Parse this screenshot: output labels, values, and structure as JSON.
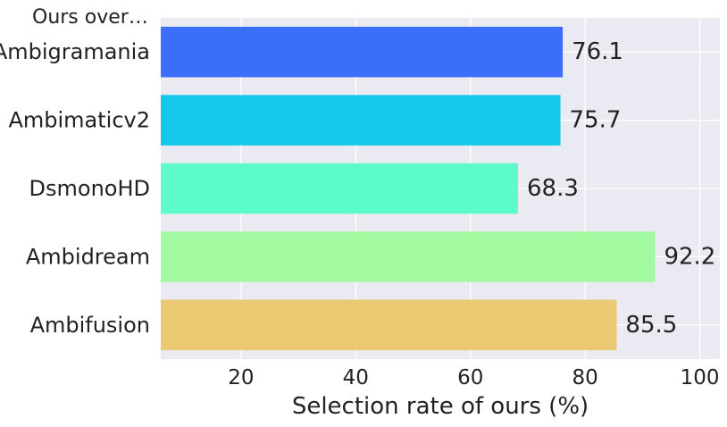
{
  "chart_data": {
    "type": "bar",
    "orientation": "horizontal",
    "corner_label": "Ours over…",
    "title": "",
    "xlabel": "Selection rate of ours (%)",
    "ylabel": "",
    "categories": [
      "Ambigramania",
      "Ambimaticv2",
      "DsmonoHD",
      "Ambidream",
      "Ambifusion"
    ],
    "values": [
      76.1,
      75.7,
      68.3,
      92.2,
      85.5
    ],
    "value_labels": [
      "76.1",
      "75.7",
      "68.3",
      "92.2",
      "85.5"
    ],
    "colors": [
      "#3b6ffb",
      "#13c8e8",
      "#5dfbc9",
      "#a3f99f",
      "#ebc972"
    ],
    "xlim": [
      6,
      103.5
    ],
    "xticks": [
      20,
      40,
      60,
      80,
      100
    ],
    "xtick_labels": [
      "20",
      "40",
      "60",
      "80",
      "100"
    ],
    "grid": true,
    "plot_background": "#eaeaf2",
    "grid_color": "#ffffff"
  }
}
